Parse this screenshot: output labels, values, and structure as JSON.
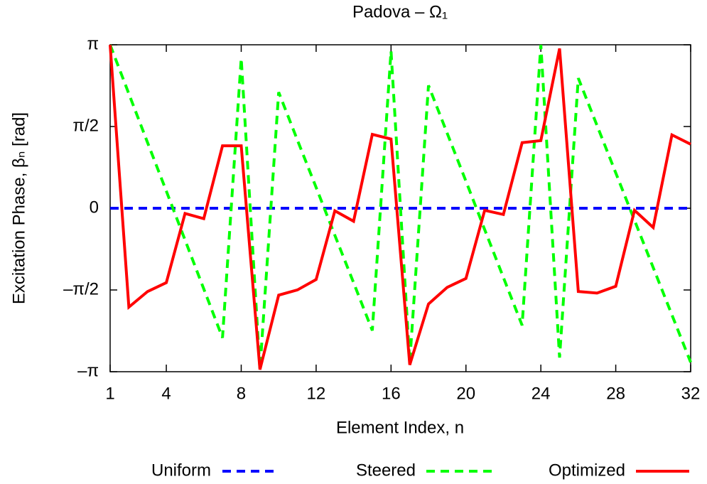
{
  "chart_data": {
    "type": "line",
    "title": "Padova – Ω₁",
    "x_label": "Element Index, n",
    "y_label": "Excitation Phase, βₙ [rad]",
    "x": [
      1,
      2,
      3,
      4,
      5,
      6,
      7,
      8,
      9,
      10,
      11,
      12,
      13,
      14,
      15,
      16,
      17,
      18,
      19,
      20,
      21,
      22,
      23,
      24,
      25,
      26,
      27,
      28,
      29,
      30,
      31,
      32
    ],
    "xlim": [
      1,
      32
    ],
    "xticks": [
      1,
      4,
      8,
      12,
      16,
      20,
      24,
      28,
      32
    ],
    "ylim": [
      -3.14159,
      3.14159
    ],
    "yticks": [
      {
        "value": -3.14159,
        "label": "–π"
      },
      {
        "value": -1.5708,
        "label": "–π/2"
      },
      0,
      {
        "value": 1.5708,
        "label": "π/2"
      },
      {
        "value": 3.14159,
        "label": "π"
      }
    ],
    "grid": false,
    "legend": "bottom",
    "series": [
      {
        "name": "Uniform",
        "color": "#0000ff",
        "dashed": true,
        "values": [
          0,
          0,
          0,
          0,
          0,
          0,
          0,
          0,
          0,
          0,
          0,
          0,
          0,
          0,
          0,
          0,
          0,
          0,
          0,
          0,
          0,
          0,
          0,
          0,
          0,
          0,
          0,
          0,
          0,
          0,
          0,
          0
        ]
      },
      {
        "name": "Steered",
        "color": "#00ff00",
        "dashed": true,
        "values": [
          3.14,
          2.2,
          1.26,
          0.33,
          -0.61,
          -1.55,
          -2.49,
          2.88,
          -3.1,
          2.23,
          1.31,
          0.4,
          -0.52,
          -1.43,
          -2.35,
          3.02,
          -2.96,
          2.36,
          1.44,
          0.52,
          -0.41,
          -1.33,
          -2.25,
          3.14,
          -2.87,
          2.5,
          1.59,
          0.68,
          -0.23,
          -1.14,
          -2.05,
          -2.96
        ]
      },
      {
        "name": "Optimized",
        "color": "#ff0000",
        "dashed": false,
        "values": [
          3.14,
          -1.9,
          -1.6,
          -1.43,
          -0.1,
          -0.2,
          1.2,
          1.2,
          -3.1,
          -1.67,
          -1.57,
          -1.37,
          -0.05,
          -0.25,
          1.42,
          1.33,
          -3.01,
          -1.84,
          -1.52,
          -1.35,
          -0.04,
          -0.12,
          1.26,
          1.3,
          3.07,
          -1.6,
          -1.63,
          -1.5,
          -0.04,
          -0.37,
          1.41,
          1.23
        ]
      }
    ]
  }
}
